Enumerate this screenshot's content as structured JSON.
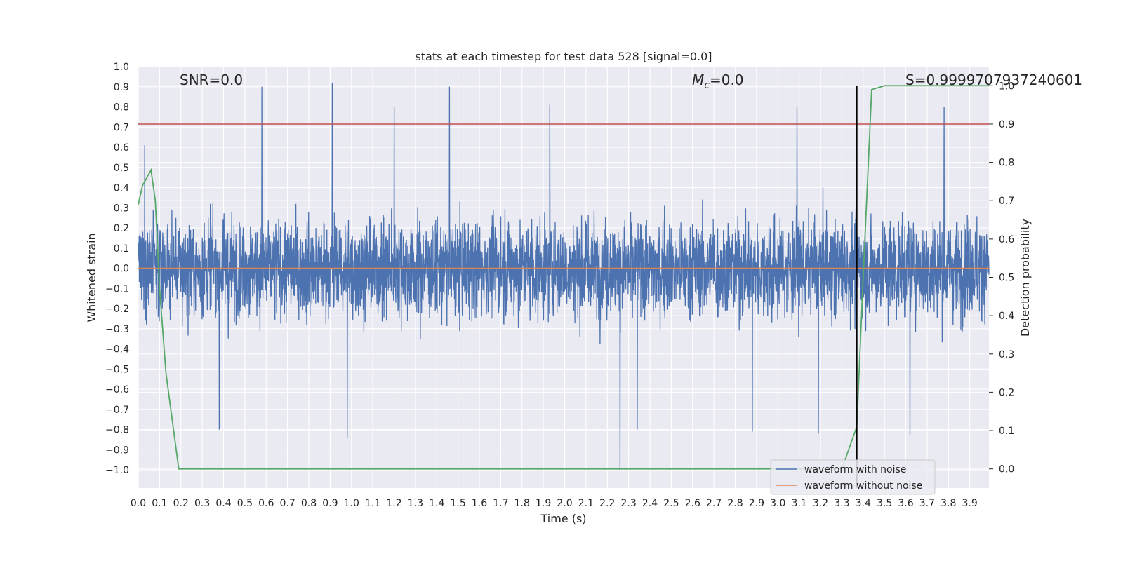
{
  "chart_data": {
    "type": "line",
    "title": "stats at each timestep for test data 528 [signal=0.0]",
    "xlabel": "Time (s)",
    "ylabel": "Whitened strain",
    "y2label": "Detection probability",
    "xlim": [
      0.0,
      3.99
    ],
    "ylim": [
      -1.09,
      1.0
    ],
    "y2lim": [
      -0.05,
      1.05
    ],
    "x_ticks": [
      "0.0",
      "0.1",
      "0.2",
      "0.3",
      "0.4",
      "0.5",
      "0.6",
      "0.7",
      "0.8",
      "0.9",
      "1.0",
      "1.1",
      "1.2",
      "1.3",
      "1.4",
      "1.5",
      "1.6",
      "1.7",
      "1.8",
      "1.9",
      "2.0",
      "2.1",
      "2.2",
      "2.3",
      "2.4",
      "2.5",
      "2.6",
      "2.7",
      "2.8",
      "2.9",
      "3.0",
      "3.1",
      "3.2",
      "3.3",
      "3.4",
      "3.5",
      "3.6",
      "3.7",
      "3.8",
      "3.9"
    ],
    "y_ticks": [
      "1.0",
      "0.9",
      "0.8",
      "0.7",
      "0.6",
      "0.5",
      "0.4",
      "0.3",
      "0.2",
      "0.1",
      "0.0",
      "−0.1",
      "−0.2",
      "−0.3",
      "−0.4",
      "−0.5",
      "−0.6",
      "−0.7",
      "−0.8",
      "−0.9",
      "−1.0"
    ],
    "y2_ticks": [
      "1.0",
      "0.9",
      "0.8",
      "0.7",
      "0.6",
      "0.5",
      "0.4",
      "0.3",
      "0.2",
      "0.1",
      "0.0"
    ],
    "grid": true,
    "legend_position": "lower-right",
    "annotations": {
      "snr": "SNR=0.0",
      "mc_symbol": "M",
      "mc_sub": "c",
      "mc_value": "=0.0",
      "s_value": "S=0.9999707937240601"
    },
    "threshold_line_y2": 0.9,
    "marker_line_x": 3.37,
    "series": [
      {
        "name": "waveform with noise",
        "color": "#4c72b0",
        "kind": "noise",
        "samples": 4096,
        "typical_range": [
          -0.5,
          0.5
        ],
        "peaks": [
          {
            "x": 0.03,
            "y": 0.61
          },
          {
            "x": 0.58,
            "y": 0.9
          },
          {
            "x": 0.91,
            "y": 0.92
          },
          {
            "x": 1.2,
            "y": 0.8
          },
          {
            "x": 1.46,
            "y": 0.9
          },
          {
            "x": 1.93,
            "y": 0.81
          },
          {
            "x": 3.09,
            "y": 0.8
          },
          {
            "x": 3.78,
            "y": 0.8
          },
          {
            "x": 0.38,
            "y": -0.8
          },
          {
            "x": 0.98,
            "y": -0.84
          },
          {
            "x": 2.26,
            "y": -1.0
          },
          {
            "x": 2.34,
            "y": -0.8
          },
          {
            "x": 3.19,
            "y": -0.82
          },
          {
            "x": 3.62,
            "y": -0.83
          },
          {
            "x": 2.88,
            "y": -0.81
          }
        ]
      },
      {
        "name": "waveform without noise",
        "color": "#dd8452",
        "values_constant": 0.0
      },
      {
        "name": "detection probability",
        "color": "#55a868",
        "axis": "y2",
        "x": [
          0.0,
          0.02,
          0.06,
          0.08,
          0.1,
          0.13,
          0.19,
          0.25,
          1.7,
          1.75,
          3.1,
          3.3,
          3.37,
          3.4,
          3.44,
          3.5,
          3.9,
          3.99
        ],
        "y": [
          0.69,
          0.74,
          0.78,
          0.7,
          0.47,
          0.25,
          0.0,
          0.0,
          0.0,
          0.0,
          0.0,
          0.0,
          0.11,
          0.5,
          0.99,
          1.0,
          1.0,
          1.0
        ]
      }
    ]
  }
}
